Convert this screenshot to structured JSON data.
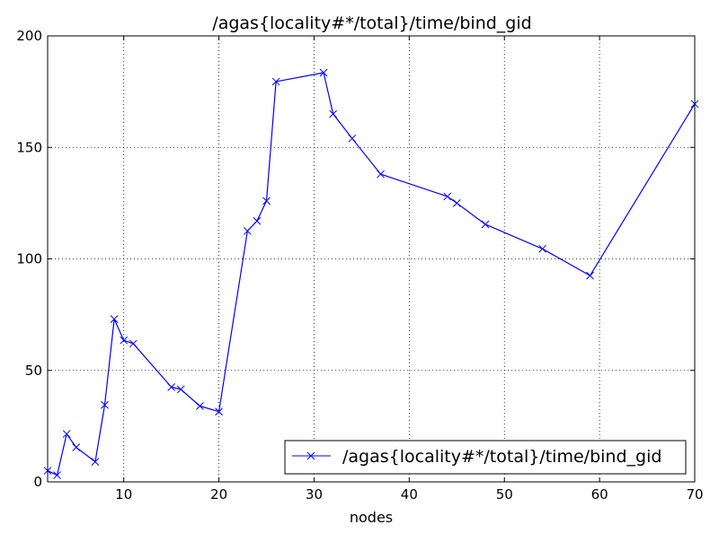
{
  "chart_data": {
    "type": "line",
    "title": "/agas{locality#*/total}/time/bind_gid",
    "xlabel": "nodes",
    "ylabel": "",
    "xlim": [
      2,
      70
    ],
    "ylim": [
      0,
      200
    ],
    "xticks": [
      10,
      20,
      30,
      40,
      50,
      60,
      70
    ],
    "yticks": [
      0,
      50,
      100,
      150,
      200
    ],
    "grid": true,
    "legend_position": "lower-right",
    "series": [
      {
        "name": "/agas{locality#*/total}/time/bind_gid",
        "color": "#0000ff",
        "marker": "x",
        "x": [
          2,
          3,
          4,
          5,
          7,
          8,
          9,
          10,
          11,
          15,
          16,
          18,
          20,
          23,
          24,
          25,
          26,
          31,
          32,
          34,
          37,
          44,
          45,
          48,
          54,
          59,
          70
        ],
        "y": [
          5,
          3,
          21.5,
          15.5,
          9,
          34.5,
          73,
          63.5,
          62,
          42.5,
          41.5,
          34,
          31.5,
          112.5,
          117,
          126,
          179.5,
          183.5,
          165,
          154,
          138,
          128,
          125,
          115.5,
          104.5,
          92.5,
          169.5
        ]
      }
    ]
  }
}
